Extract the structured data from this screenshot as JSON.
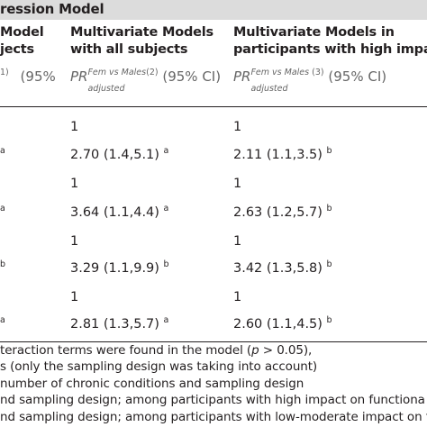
{
  "title": "ression Model",
  "columns": [
    {
      "header_lines": [
        "Model",
        "jects"
      ],
      "sub": {
        "sup": "1)",
        "ci": "(95%"
      }
    },
    {
      "header_lines": [
        "Multivariate Models",
        "with all subjects"
      ],
      "sub": {
        "pr": "PR",
        "sup": "Fem vs Males",
        "supnum": "(2)",
        "subscript": "adjusted",
        "ci": "(95% CI)"
      }
    },
    {
      "header_lines": [
        "Multivariate Models in",
        "participants with high impa"
      ],
      "sub": {
        "pr": "PR",
        "sup": "Fem vs Males",
        "supnum": "(3)",
        "subscript": "adjusted",
        "ci": "(95% CI)"
      }
    }
  ],
  "rows": [
    {
      "c0": "",
      "c1": "1",
      "c1_mark": "",
      "c2": "1",
      "c2_mark": ""
    },
    {
      "c0": "a",
      "c1": "2.70 (1.4,5.1)",
      "c1_mark": "a",
      "c2": "2.11 (1.1,3.5)",
      "c2_mark": "b"
    },
    {
      "c0": "",
      "c1": "1",
      "c1_mark": "",
      "c2": "1",
      "c2_mark": ""
    },
    {
      "c0": "a",
      "c1": "3.64 (1.1,4.4)",
      "c1_mark": "a",
      "c2": "2.63 (1.2,5.7)",
      "c2_mark": "b"
    },
    {
      "c0": "",
      "c1": "1",
      "c1_mark": "",
      "c2": "1",
      "c2_mark": ""
    },
    {
      "c0": "b",
      "c1": "3.29 (1.1,9.9)",
      "c1_mark": "b",
      "c2": "3.42 (1.3,5.8)",
      "c2_mark": "b"
    },
    {
      "c0": "",
      "c1": "1",
      "c1_mark": "",
      "c2": "1",
      "c2_mark": ""
    },
    {
      "c0": "a",
      "c1": "2.81 (1.3,5.7)",
      "c1_mark": "a",
      "c2": "2.60 (1.1,4.5)",
      "c2_mark": "b"
    }
  ],
  "footnotes": {
    "line1_pre": "teraction terms were found in the model (",
    "line1_p": "p",
    "line1_post": " > 0.05),",
    "line2": "s (only the sampling design was taking into account)",
    "line3": "number of chronic conditions and sampling design",
    "line4": "nd sampling design; among participants with high impact on functiona",
    "line5": "nd sampling design; among participants with low-moderate impact on f"
  }
}
